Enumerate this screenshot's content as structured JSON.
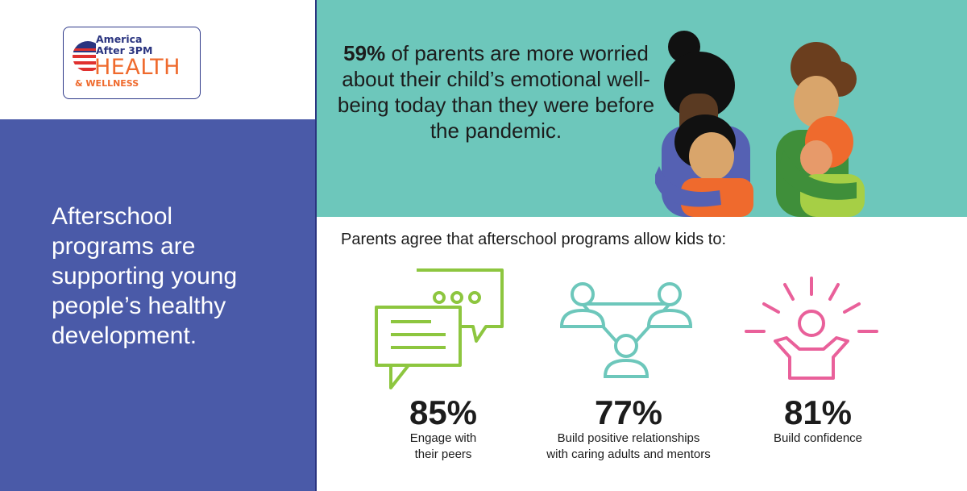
{
  "logo": {
    "line1": "America",
    "line2": "After 3PM",
    "health": "HEALTH",
    "wellness": "& WELLNESS"
  },
  "sidebar": {
    "lines": [
      "Afterschool",
      "programs are",
      "supporting young",
      "people’s healthy",
      "development."
    ]
  },
  "headline": {
    "highlight": "59%",
    "rest": " of parents are more worried about their child’s emotional well-being today than they were before the pandemic."
  },
  "subheading": "Parents agree that afterschool programs allow kids to:",
  "stats": [
    {
      "value": "85%",
      "label_lines": [
        "Engage with",
        "their peers"
      ],
      "icon": "chat-bubbles-icon",
      "color": "#8dc63f"
    },
    {
      "value": "77%",
      "label_lines": [
        "Build positive relationships",
        "with caring adults and mentors"
      ],
      "icon": "connected-people-icon",
      "color": "#6dc7bb"
    },
    {
      "value": "81%",
      "label_lines": [
        "Build confidence"
      ],
      "icon": "cheering-person-icon",
      "color": "#e9609a"
    }
  ],
  "colors": {
    "blue": "#4a5aa8",
    "teal": "#6dc7bb",
    "orange": "#ef6a2d",
    "navy": "#2b3580",
    "green": "#8dc63f",
    "pink": "#e9609a"
  }
}
